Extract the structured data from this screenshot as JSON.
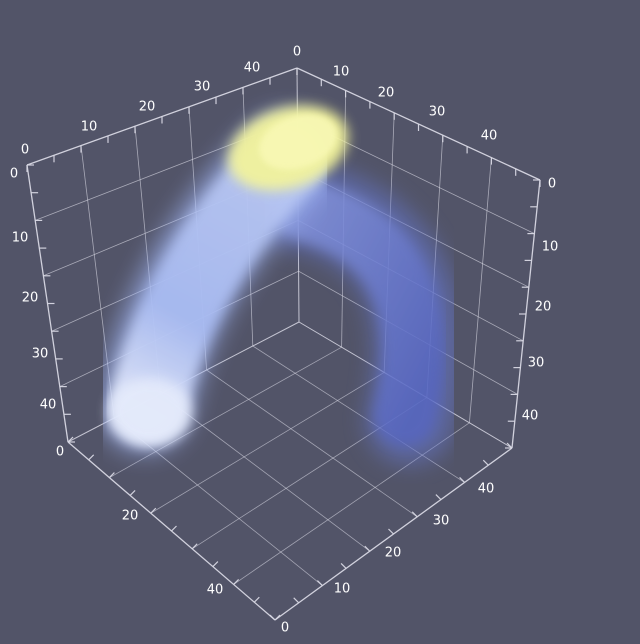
{
  "scene": {
    "background_color": "#525468",
    "grid_color": "#d8d8e4",
    "label_color": "#ffffff",
    "volume_colors": {
      "cap_glow": "#f4f49a",
      "near_body": "#a8baf4",
      "far_body": "#5c6cc8",
      "highlight": "#e2e8fb"
    }
  },
  "axes": {
    "top_left_edge": [
      "0",
      "10",
      "20",
      "30",
      "40"
    ],
    "top_right_edge": [
      "0",
      "10",
      "20",
      "30",
      "40"
    ],
    "left_vertical": [
      "0",
      "10",
      "20",
      "30",
      "40"
    ],
    "right_vertical": [
      "0",
      "10",
      "20",
      "30",
      "40"
    ],
    "bottom_left_edge": [
      "0",
      "20",
      "40"
    ],
    "bottom_right_edge": [
      "0",
      "10",
      "20",
      "30",
      "40"
    ]
  }
}
